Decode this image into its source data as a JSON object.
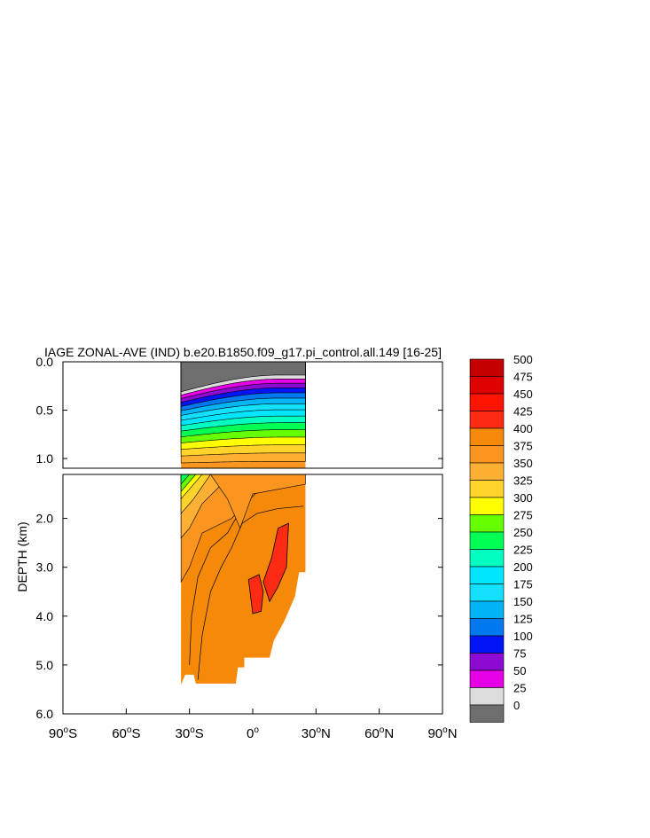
{
  "chart_data": {
    "type": "heatmap",
    "title": "IAGE ZONAL-AVE (IND) b.e20.B1850.f09_g17.pi_control.all.149 [16-25]",
    "ylabel": "DEPTH (km)",
    "xlabel": "",
    "x_ticks": [
      {
        "value": -90,
        "deg": "90",
        "hemi": "S"
      },
      {
        "value": -60,
        "deg": "60",
        "hemi": "S"
      },
      {
        "value": -30,
        "deg": "30",
        "hemi": "S"
      },
      {
        "value": 0,
        "deg": "0",
        "hemi": ""
      },
      {
        "value": 30,
        "deg": "30",
        "hemi": "N"
      },
      {
        "value": 60,
        "deg": "60",
        "hemi": "N"
      },
      {
        "value": 90,
        "deg": "90",
        "hemi": "N"
      }
    ],
    "xlim": [
      -90,
      90
    ],
    "upper_panel": {
      "ylim": [
        0,
        1.1
      ],
      "y_ticks": [
        "0.0",
        "0.5",
        "1.0"
      ],
      "y_values": [
        0,
        0.5,
        1.0
      ]
    },
    "lower_panel": {
      "ylim": [
        1.1,
        6.0
      ],
      "y_ticks": [
        "2.0",
        "3.0",
        "4.0",
        "5.0",
        "6.0"
      ],
      "y_values": [
        2,
        3,
        4,
        5,
        6
      ]
    },
    "colorbar": {
      "labels": [
        "500",
        "475",
        "450",
        "425",
        "400",
        "375",
        "350",
        "325",
        "300",
        "275",
        "250",
        "225",
        "200",
        "175",
        "150",
        "125",
        "100",
        "75",
        "50",
        "25",
        "0"
      ],
      "colors": [
        "#c40000",
        "#e00000",
        "#ff1400",
        "#ff2a14",
        "#f58a0a",
        "#fa9620",
        "#fdb034",
        "#ffd42a",
        "#ffff00",
        "#66ff00",
        "#00ff55",
        "#00ffc0",
        "#00e6ff",
        "#14e1ff",
        "#00b4f5",
        "#0078f0",
        "#0014f5",
        "#8c0ad2",
        "#e600e6",
        "#dcdcdc",
        "#6e6e6e"
      ]
    },
    "data_extent": {
      "lon_min": -34,
      "lon_max": 25,
      "max_depth_km": 5.4
    },
    "max_region": {
      "value_range": [
        425,
        450
      ],
      "lon": [
        0,
        17
      ],
      "depth_km": [
        2.1,
        3.9
      ]
    }
  }
}
